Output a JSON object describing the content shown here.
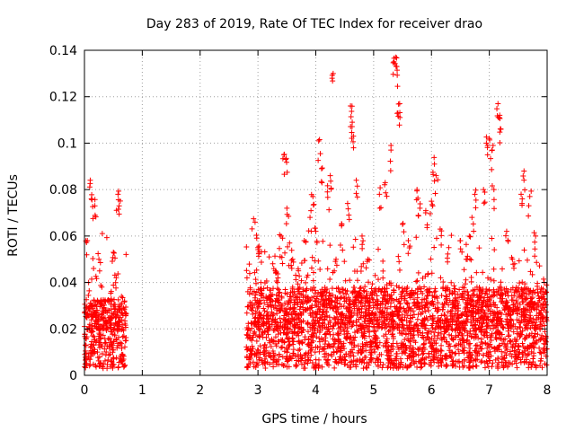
{
  "chart_data": {
    "type": "scatter",
    "title": "Day 283 of 2019, Rate Of TEC Index for receiver drao",
    "xlabel": "GPS time / hours",
    "ylabel": "ROTI / TECUs",
    "xlim": [
      0,
      8
    ],
    "ylim": [
      0,
      0.14
    ],
    "x_ticks": [
      "0",
      "1",
      "2",
      "3",
      "4",
      "5",
      "6",
      "7",
      "8"
    ],
    "y_ticks": [
      "0",
      "0.02",
      "0.04",
      "0.06",
      "0.08",
      "0.1",
      "0.12",
      "0.14"
    ],
    "grid": true,
    "marker": "+",
    "color": "#ff0000",
    "series": [
      {
        "name": "ROTI",
        "note": "dense cloud of ~3000 points in 0.0-0.7 h and 2.8-8.0 h; highlighted points below",
        "segments": [
          {
            "x_start": 0.0,
            "x_end": 0.72,
            "baseline_max": 0.03
          },
          {
            "x_start": 2.8,
            "x_end": 8.0,
            "baseline_max": 0.035
          }
        ],
        "points": [
          [
            0.02,
            0.029
          ],
          [
            0.05,
            0.058
          ],
          [
            0.1,
            0.084
          ],
          [
            0.12,
            0.076
          ],
          [
            0.18,
            0.073
          ],
          [
            0.25,
            0.05
          ],
          [
            0.3,
            0.038
          ],
          [
            0.5,
            0.053
          ],
          [
            0.55,
            0.042
          ],
          [
            0.58,
            0.078
          ],
          [
            0.6,
            0.073
          ],
          [
            0.64,
            0.034
          ],
          [
            2.95,
            0.066
          ],
          [
            3.0,
            0.055
          ],
          [
            3.05,
            0.04
          ],
          [
            3.2,
            0.033
          ],
          [
            3.3,
            0.045
          ],
          [
            3.4,
            0.06
          ],
          [
            3.45,
            0.095
          ],
          [
            3.48,
            0.093
          ],
          [
            3.5,
            0.072
          ],
          [
            3.6,
            0.05
          ],
          [
            3.7,
            0.045
          ],
          [
            3.8,
            0.058
          ],
          [
            3.9,
            0.068
          ],
          [
            3.95,
            0.077
          ],
          [
            4.0,
            0.062
          ],
          [
            4.05,
            0.101
          ],
          [
            4.1,
            0.089
          ],
          [
            4.2,
            0.079
          ],
          [
            4.25,
            0.086
          ],
          [
            4.3,
            0.13
          ],
          [
            4.35,
            0.05
          ],
          [
            4.45,
            0.065
          ],
          [
            4.55,
            0.074
          ],
          [
            4.6,
            0.116
          ],
          [
            4.63,
            0.109
          ],
          [
            4.65,
            0.103
          ],
          [
            4.7,
            0.084
          ],
          [
            4.8,
            0.06
          ],
          [
            4.9,
            0.05
          ],
          [
            5.1,
            0.078
          ],
          [
            5.2,
            0.083
          ],
          [
            5.3,
            0.097
          ],
          [
            5.35,
            0.135
          ],
          [
            5.38,
            0.137
          ],
          [
            5.4,
            0.133
          ],
          [
            5.42,
            0.113
          ],
          [
            5.45,
            0.117
          ],
          [
            5.5,
            0.065
          ],
          [
            5.6,
            0.058
          ],
          [
            5.75,
            0.08
          ],
          [
            5.8,
            0.072
          ],
          [
            5.9,
            0.07
          ],
          [
            6.0,
            0.075
          ],
          [
            6.05,
            0.091
          ],
          [
            6.08,
            0.086
          ],
          [
            6.15,
            0.063
          ],
          [
            6.3,
            0.055
          ],
          [
            6.5,
            0.058
          ],
          [
            6.6,
            0.05
          ],
          [
            6.7,
            0.068
          ],
          [
            6.75,
            0.078
          ],
          [
            6.9,
            0.08
          ],
          [
            6.95,
            0.1
          ],
          [
            7.0,
            0.102
          ],
          [
            7.05,
            0.097
          ],
          [
            7.08,
            0.08
          ],
          [
            7.15,
            0.117
          ],
          [
            7.18,
            0.112
          ],
          [
            7.2,
            0.106
          ],
          [
            7.3,
            0.062
          ],
          [
            7.4,
            0.05
          ],
          [
            7.55,
            0.078
          ],
          [
            7.6,
            0.088
          ],
          [
            7.7,
            0.077
          ],
          [
            7.8,
            0.06
          ],
          [
            7.95,
            0.04
          ]
        ]
      }
    ]
  }
}
